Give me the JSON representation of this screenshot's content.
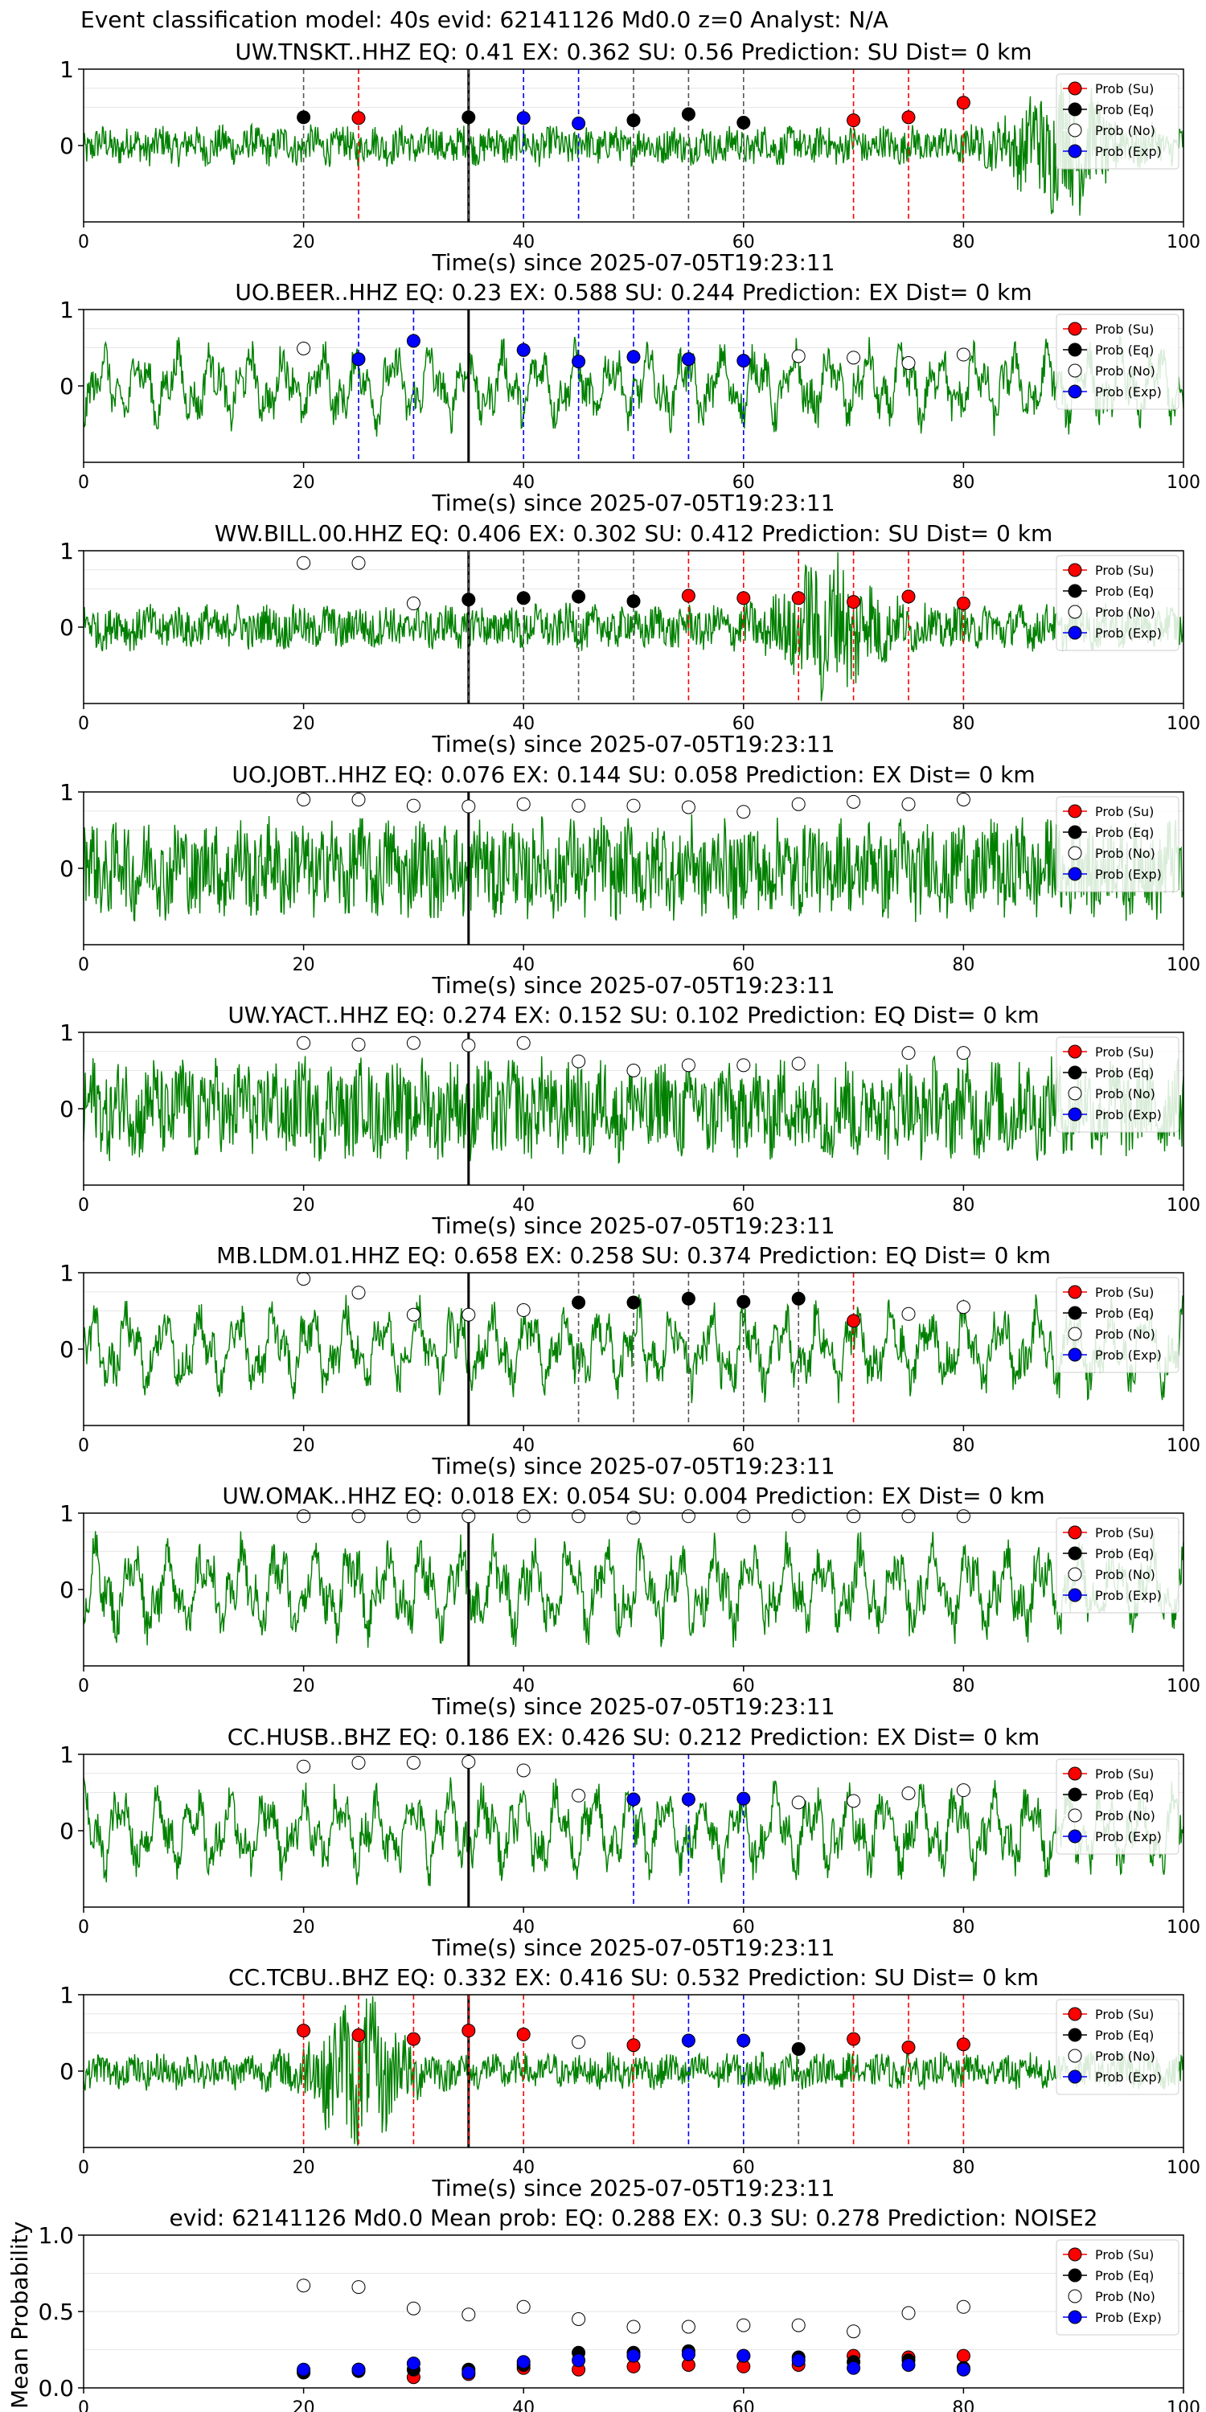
{
  "colors": {
    "waveform": "#008000",
    "su": "#ff0000",
    "eq": "#000000",
    "no": "#ffffff",
    "exp": "#0000ff",
    "grid": "#e6e6e6",
    "arrival": "#000000"
  },
  "legend_labels": [
    "Prob (Su)",
    "Prob (Eq)",
    "Prob (No)",
    "Prob (Exp)"
  ],
  "chart_data": {
    "title": "Event classification model: 40s evid: 62141126 Md0.0 z=0 Analyst: N/A",
    "xlabel": "Time(s) since 2025-07-05T19:23:11",
    "xlim": [
      0,
      100
    ],
    "ylim": [
      -1,
      1
    ],
    "x_ticks": [
      "0",
      "20",
      "40",
      "60",
      "80",
      "100"
    ],
    "y_ticks": [
      "0",
      "1"
    ],
    "arrival_time": 35,
    "window_times": [
      20,
      25,
      30,
      35,
      40,
      45,
      50,
      55,
      60,
      65,
      70,
      75,
      80
    ],
    "stations": [
      {
        "title": "UW.TNSKT..HHZ   EQ: 0.41  EX: 0.362  SU: 0.56   Prediction: SU    Dist= 0 km",
        "waveform": {
          "amp": 0.22,
          "style": "burst",
          "burst_at": 89,
          "burst_amp": 0.8
        },
        "windows": [
          {
            "t": 20,
            "cls": "eq",
            "p": 0.37
          },
          {
            "t": 25,
            "cls": "su",
            "p": 0.36
          },
          {
            "t": 35,
            "cls": "eq",
            "p": 0.37
          },
          {
            "t": 40,
            "cls": "exp",
            "p": 0.36
          },
          {
            "t": 45,
            "cls": "exp",
            "p": 0.29
          },
          {
            "t": 50,
            "cls": "eq",
            "p": 0.33
          },
          {
            "t": 55,
            "cls": "eq",
            "p": 0.41
          },
          {
            "t": 60,
            "cls": "eq",
            "p": 0.3
          },
          {
            "t": 70,
            "cls": "su",
            "p": 0.33
          },
          {
            "t": 75,
            "cls": "su",
            "p": 0.37
          },
          {
            "t": 80,
            "cls": "su",
            "p": 0.56
          }
        ]
      },
      {
        "title": "UO.BEER..HHZ   EQ: 0.23  EX: 0.588  SU: 0.244   Prediction: EX    Dist= 0 km",
        "waveform": {
          "amp": 0.5,
          "style": "wavy"
        },
        "windows": [
          {
            "t": 20,
            "cls": "no",
            "p": 0.49
          },
          {
            "t": 25,
            "cls": "exp",
            "p": 0.35
          },
          {
            "t": 30,
            "cls": "exp",
            "p": 0.59
          },
          {
            "t": 40,
            "cls": "exp",
            "p": 0.47
          },
          {
            "t": 45,
            "cls": "exp",
            "p": 0.32
          },
          {
            "t": 50,
            "cls": "exp",
            "p": 0.38
          },
          {
            "t": 55,
            "cls": "exp",
            "p": 0.35
          },
          {
            "t": 60,
            "cls": "exp",
            "p": 0.33
          },
          {
            "t": 65,
            "cls": "no",
            "p": 0.39
          },
          {
            "t": 70,
            "cls": "no",
            "p": 0.37
          },
          {
            "t": 75,
            "cls": "no",
            "p": 0.3
          },
          {
            "t": 80,
            "cls": "no",
            "p": 0.41
          }
        ]
      },
      {
        "title": "WW.BILL.00.HHZ   EQ: 0.406  EX: 0.302  SU: 0.412   Prediction: SU    Dist= 0 km",
        "waveform": {
          "amp": 0.25,
          "style": "burst",
          "burst_at": 68,
          "burst_amp": 0.85
        },
        "windows": [
          {
            "t": 20,
            "cls": "no",
            "p": 0.84
          },
          {
            "t": 25,
            "cls": "no",
            "p": 0.84
          },
          {
            "t": 30,
            "cls": "no",
            "p": 0.31
          },
          {
            "t": 35,
            "cls": "eq",
            "p": 0.36
          },
          {
            "t": 40,
            "cls": "eq",
            "p": 0.38
          },
          {
            "t": 45,
            "cls": "eq",
            "p": 0.4
          },
          {
            "t": 50,
            "cls": "eq",
            "p": 0.34
          },
          {
            "t": 55,
            "cls": "su",
            "p": 0.41
          },
          {
            "t": 60,
            "cls": "su",
            "p": 0.38
          },
          {
            "t": 65,
            "cls": "su",
            "p": 0.38
          },
          {
            "t": 70,
            "cls": "su",
            "p": 0.33
          },
          {
            "t": 75,
            "cls": "su",
            "p": 0.4
          },
          {
            "t": 80,
            "cls": "su",
            "p": 0.31
          }
        ]
      },
      {
        "title": "UO.JOBT..HHZ   EQ: 0.076  EX: 0.144  SU: 0.058   Prediction: EX    Dist= 0 km",
        "waveform": {
          "amp": 0.55,
          "style": "noisy"
        },
        "windows": [
          {
            "t": 20,
            "cls": "no",
            "p": 0.9
          },
          {
            "t": 25,
            "cls": "no",
            "p": 0.9
          },
          {
            "t": 30,
            "cls": "no",
            "p": 0.82
          },
          {
            "t": 35,
            "cls": "no",
            "p": 0.81
          },
          {
            "t": 40,
            "cls": "no",
            "p": 0.84
          },
          {
            "t": 45,
            "cls": "no",
            "p": 0.82
          },
          {
            "t": 50,
            "cls": "no",
            "p": 0.82
          },
          {
            "t": 55,
            "cls": "no",
            "p": 0.8
          },
          {
            "t": 60,
            "cls": "no",
            "p": 0.74
          },
          {
            "t": 65,
            "cls": "no",
            "p": 0.84
          },
          {
            "t": 70,
            "cls": "no",
            "p": 0.87
          },
          {
            "t": 75,
            "cls": "no",
            "p": 0.84
          },
          {
            "t": 80,
            "cls": "no",
            "p": 0.9
          }
        ]
      },
      {
        "title": "UW.YACT..HHZ   EQ: 0.274  EX: 0.152  SU: 0.102   Prediction: EQ    Dist= 0 km",
        "waveform": {
          "amp": 0.55,
          "style": "noisy"
        },
        "windows": [
          {
            "t": 20,
            "cls": "no",
            "p": 0.86
          },
          {
            "t": 25,
            "cls": "no",
            "p": 0.84
          },
          {
            "t": 30,
            "cls": "no",
            "p": 0.86
          },
          {
            "t": 35,
            "cls": "no",
            "p": 0.83
          },
          {
            "t": 40,
            "cls": "no",
            "p": 0.86
          },
          {
            "t": 45,
            "cls": "no",
            "p": 0.62
          },
          {
            "t": 50,
            "cls": "no",
            "p": 0.5
          },
          {
            "t": 55,
            "cls": "no",
            "p": 0.57
          },
          {
            "t": 60,
            "cls": "no",
            "p": 0.57
          },
          {
            "t": 65,
            "cls": "no",
            "p": 0.59
          },
          {
            "t": 75,
            "cls": "no",
            "p": 0.73
          },
          {
            "t": 80,
            "cls": "no",
            "p": 0.73
          }
        ]
      },
      {
        "title": "MB.LDM.01.HHZ   EQ: 0.658  EX: 0.258  SU: 0.374   Prediction: EQ    Dist= 0 km",
        "waveform": {
          "amp": 0.55,
          "style": "wavy"
        },
        "windows": [
          {
            "t": 20,
            "cls": "no",
            "p": 0.92
          },
          {
            "t": 25,
            "cls": "no",
            "p": 0.74
          },
          {
            "t": 30,
            "cls": "no",
            "p": 0.45
          },
          {
            "t": 35,
            "cls": "no",
            "p": 0.45
          },
          {
            "t": 40,
            "cls": "no",
            "p": 0.51
          },
          {
            "t": 45,
            "cls": "eq",
            "p": 0.61
          },
          {
            "t": 50,
            "cls": "eq",
            "p": 0.61
          },
          {
            "t": 55,
            "cls": "eq",
            "p": 0.66
          },
          {
            "t": 60,
            "cls": "eq",
            "p": 0.62
          },
          {
            "t": 65,
            "cls": "eq",
            "p": 0.66
          },
          {
            "t": 70,
            "cls": "su",
            "p": 0.37
          },
          {
            "t": 75,
            "cls": "no",
            "p": 0.46
          },
          {
            "t": 80,
            "cls": "no",
            "p": 0.55
          }
        ]
      },
      {
        "title": "UW.OMAK..HHZ   EQ: 0.018  EX: 0.054  SU: 0.004   Prediction: EX    Dist= 0 km",
        "waveform": {
          "amp": 0.6,
          "style": "wavy"
        },
        "windows": [
          {
            "t": 20,
            "cls": "no",
            "p": 0.96
          },
          {
            "t": 25,
            "cls": "no",
            "p": 0.96
          },
          {
            "t": 30,
            "cls": "no",
            "p": 0.96
          },
          {
            "t": 35,
            "cls": "no",
            "p": 0.96
          },
          {
            "t": 40,
            "cls": "no",
            "p": 0.96
          },
          {
            "t": 45,
            "cls": "no",
            "p": 0.96
          },
          {
            "t": 50,
            "cls": "no",
            "p": 0.94
          },
          {
            "t": 55,
            "cls": "no",
            "p": 0.96
          },
          {
            "t": 60,
            "cls": "no",
            "p": 0.96
          },
          {
            "t": 65,
            "cls": "no",
            "p": 0.96
          },
          {
            "t": 70,
            "cls": "no",
            "p": 0.96
          },
          {
            "t": 75,
            "cls": "no",
            "p": 0.96
          },
          {
            "t": 80,
            "cls": "no",
            "p": 0.96
          }
        ]
      },
      {
        "title": "CC.HUSB..BHZ   EQ: 0.186  EX: 0.426  SU: 0.212   Prediction: EX    Dist= 0 km",
        "waveform": {
          "amp": 0.55,
          "style": "wavy"
        },
        "windows": [
          {
            "t": 20,
            "cls": "no",
            "p": 0.84
          },
          {
            "t": 25,
            "cls": "no",
            "p": 0.89
          },
          {
            "t": 30,
            "cls": "no",
            "p": 0.89
          },
          {
            "t": 35,
            "cls": "no",
            "p": 0.9
          },
          {
            "t": 40,
            "cls": "no",
            "p": 0.79
          },
          {
            "t": 45,
            "cls": "no",
            "p": 0.46
          },
          {
            "t": 50,
            "cls": "exp",
            "p": 0.41
          },
          {
            "t": 55,
            "cls": "exp",
            "p": 0.41
          },
          {
            "t": 60,
            "cls": "exp",
            "p": 0.42
          },
          {
            "t": 65,
            "cls": "no",
            "p": 0.37
          },
          {
            "t": 70,
            "cls": "no",
            "p": 0.39
          },
          {
            "t": 75,
            "cls": "no",
            "p": 0.49
          },
          {
            "t": 80,
            "cls": "no",
            "p": 0.53
          }
        ]
      },
      {
        "title": "CC.TCBU..BHZ   EQ: 0.332  EX: 0.416  SU: 0.532   Prediction: SU    Dist= 0 km",
        "waveform": {
          "amp": 0.2,
          "style": "burst",
          "burst_at": 25,
          "burst_amp": 0.85
        },
        "windows": [
          {
            "t": 20,
            "cls": "su",
            "p": 0.53
          },
          {
            "t": 25,
            "cls": "su",
            "p": 0.47
          },
          {
            "t": 30,
            "cls": "su",
            "p": 0.42
          },
          {
            "t": 35,
            "cls": "su",
            "p": 0.53
          },
          {
            "t": 40,
            "cls": "su",
            "p": 0.48
          },
          {
            "t": 45,
            "cls": "no",
            "p": 0.38
          },
          {
            "t": 50,
            "cls": "su",
            "p": 0.34
          },
          {
            "t": 55,
            "cls": "exp",
            "p": 0.4
          },
          {
            "t": 60,
            "cls": "exp",
            "p": 0.4
          },
          {
            "t": 65,
            "cls": "eq",
            "p": 0.29
          },
          {
            "t": 70,
            "cls": "su",
            "p": 0.42
          },
          {
            "t": 75,
            "cls": "su",
            "p": 0.31
          },
          {
            "t": 80,
            "cls": "su",
            "p": 0.35
          }
        ]
      }
    ],
    "mean": {
      "title": "evid: 62141126  Md0.0   Mean prob:    EQ: 0.288  EX: 0.3  SU: 0.278   Prediction: NOISE2",
      "ylabel": "Mean Probability",
      "ylim": [
        0,
        1
      ],
      "y_ticks": [
        "0.0",
        "0.5",
        "1.0"
      ],
      "series": [
        {
          "cls": "no",
          "values": [
            0.67,
            0.66,
            0.52,
            0.48,
            0.53,
            0.45,
            0.4,
            0.4,
            0.41,
            0.41,
            0.37,
            0.49,
            0.53
          ]
        },
        {
          "cls": "su",
          "values": [
            0.11,
            0.12,
            0.07,
            0.09,
            0.13,
            0.12,
            0.14,
            0.15,
            0.14,
            0.15,
            0.21,
            0.2,
            0.21
          ]
        },
        {
          "cls": "eq",
          "values": [
            0.1,
            0.11,
            0.12,
            0.12,
            0.15,
            0.23,
            0.23,
            0.24,
            0.21,
            0.2,
            0.17,
            0.18,
            0.13
          ]
        },
        {
          "cls": "exp",
          "values": [
            0.12,
            0.12,
            0.16,
            0.1,
            0.17,
            0.18,
            0.21,
            0.22,
            0.21,
            0.18,
            0.13,
            0.15,
            0.12
          ]
        }
      ]
    }
  }
}
